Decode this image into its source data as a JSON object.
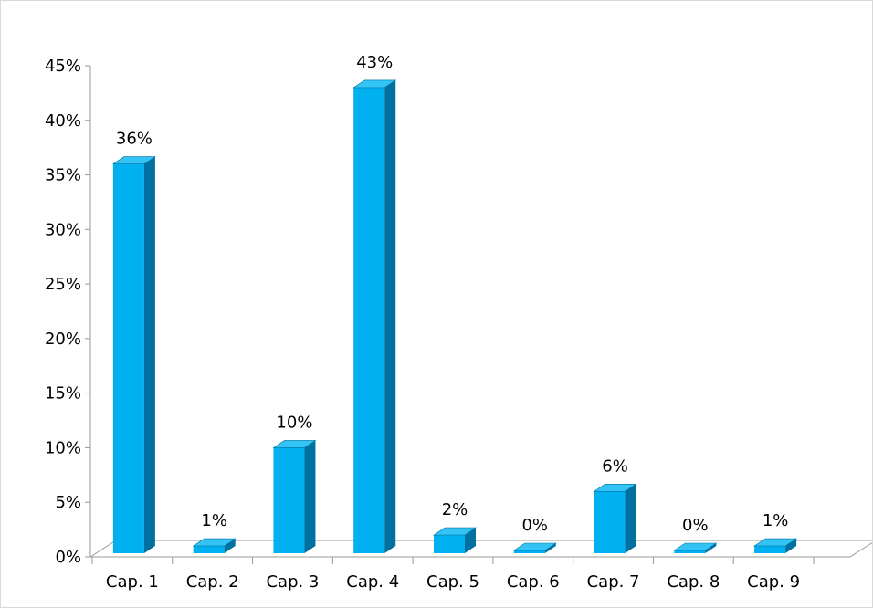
{
  "chart_data": {
    "type": "bar",
    "title": "",
    "xlabel": "",
    "ylabel": "",
    "categories": [
      "Cap. 1",
      "Cap. 2",
      "Cap. 3",
      "Cap. 4",
      "Cap. 5",
      "Cap. 6",
      "Cap. 7",
      "Cap. 8",
      "Cap. 9"
    ],
    "values": [
      36,
      1,
      10,
      43,
      2,
      0,
      6,
      0,
      1
    ],
    "data_labels": [
      "36%",
      "1%",
      "10%",
      "43%",
      "2%",
      "0%",
      "6%",
      "0%",
      "1%"
    ],
    "ylim": [
      0,
      45
    ],
    "y_ticks": [
      0,
      5,
      10,
      15,
      20,
      25,
      30,
      35,
      40,
      45
    ],
    "y_tick_labels": [
      "0%",
      "5%",
      "10%",
      "15%",
      "20%",
      "25%",
      "30%",
      "35%",
      "40%",
      "45%"
    ],
    "value_unit": "%",
    "style": "3d-column",
    "grid": false,
    "legend": "none",
    "colors": {
      "bar_front": "#00B0F0",
      "bar_side": "#0070A0",
      "bar_top": "#33C4F5",
      "axis": "#999999"
    }
  }
}
